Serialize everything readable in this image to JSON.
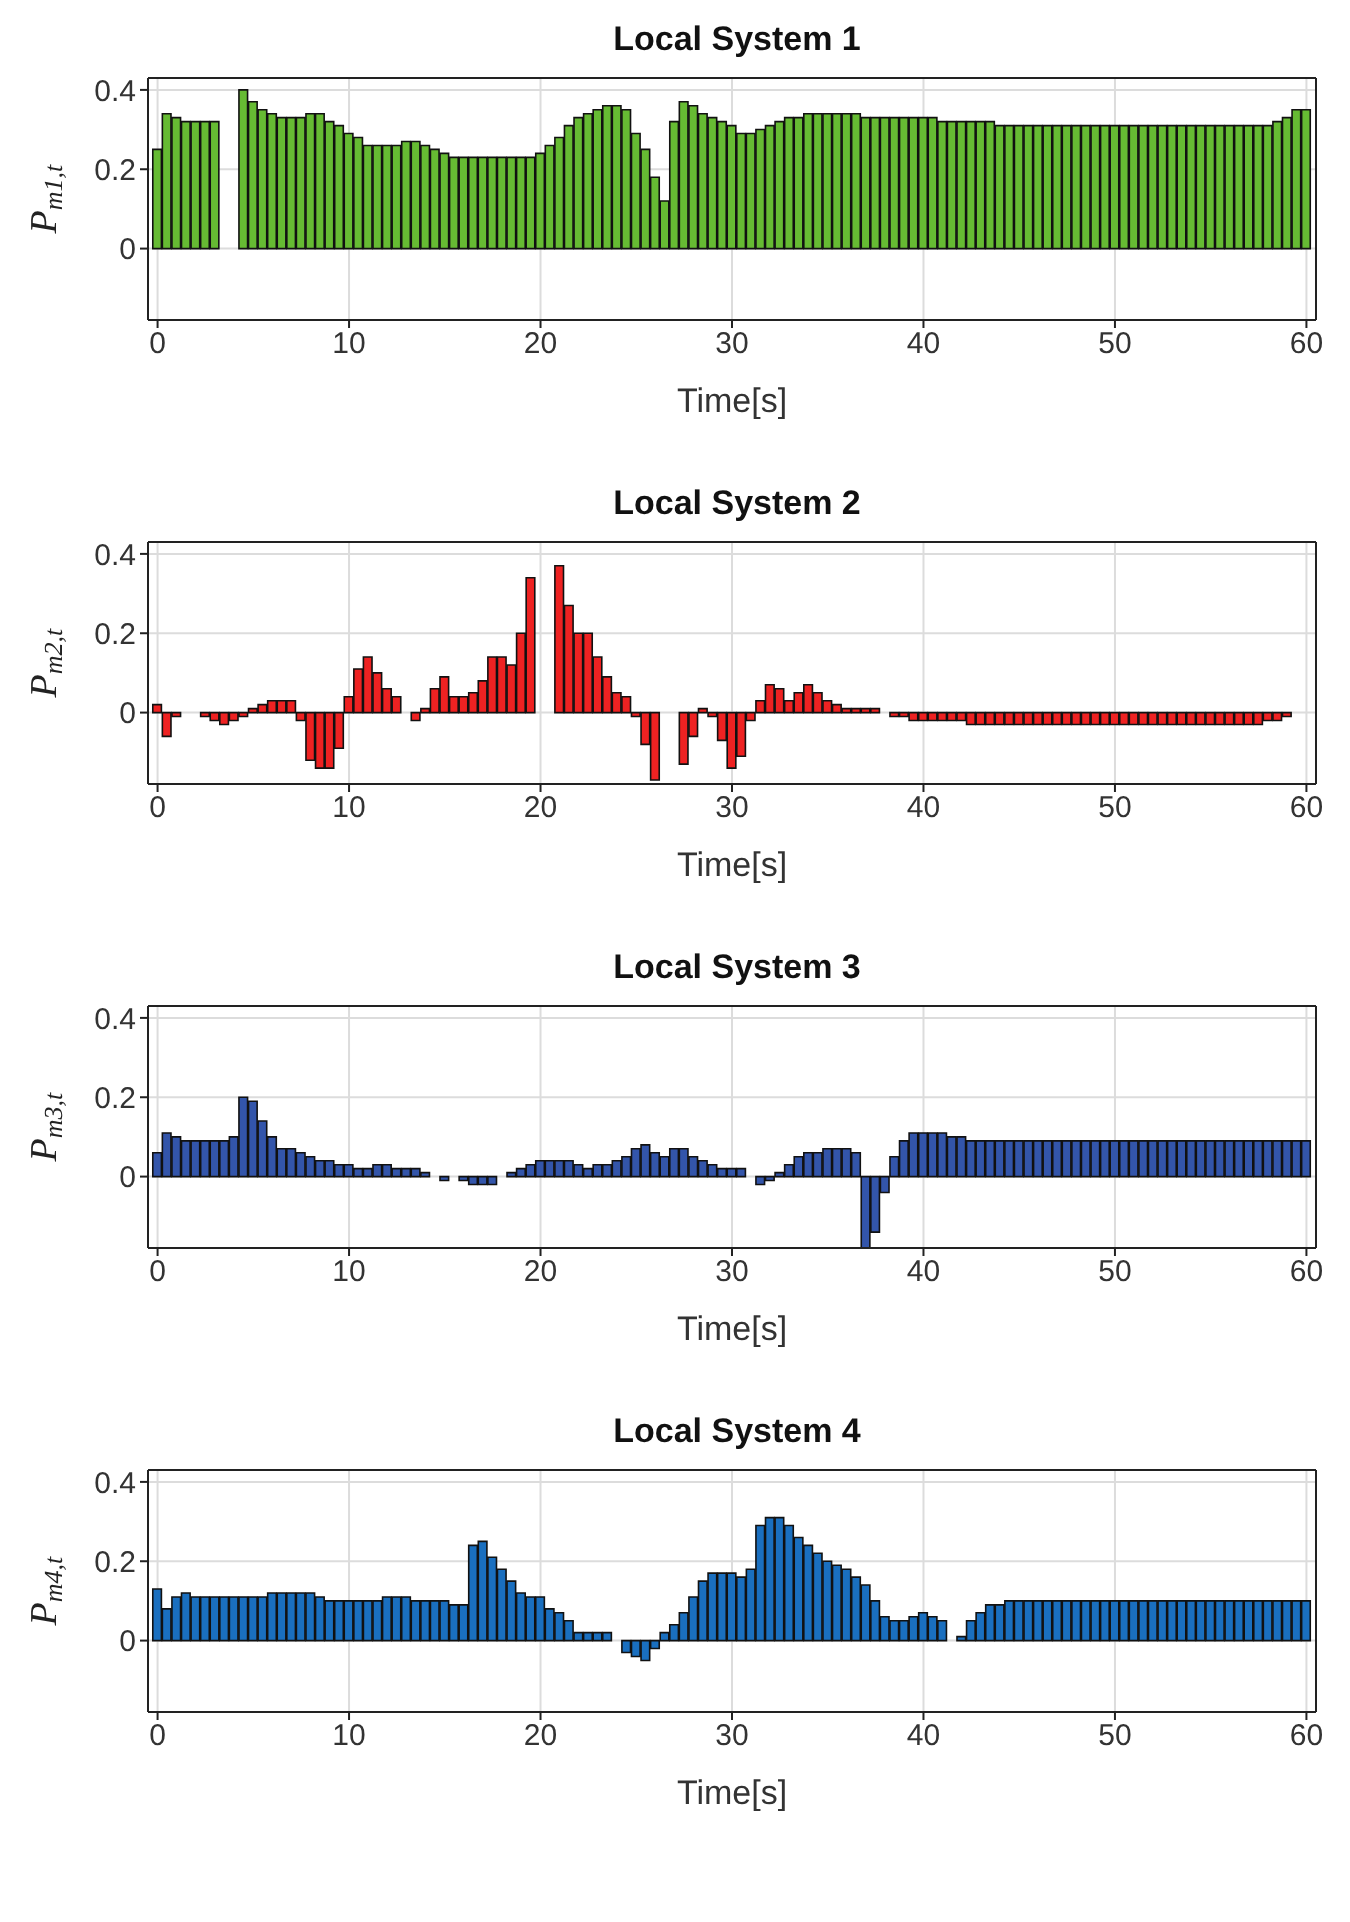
{
  "chart_data": [
    {
      "type": "bar",
      "title": "Local System 1",
      "xlabel": "Time[s]",
      "ylabel": "P$_{m1,t}$",
      "color": "#66bb33",
      "grid": true,
      "xlim": [
        -0.5,
        60.5
      ],
      "xticks": [
        0,
        10,
        20,
        30,
        40,
        50,
        60
      ],
      "ylim": [
        -0.18,
        0.43
      ],
      "yticks": [
        0,
        0.2,
        0.4
      ],
      "x": [
        0,
        0.5,
        1,
        1.5,
        2,
        2.5,
        3,
        3.5,
        4,
        4.5,
        5,
        5.5,
        6,
        6.5,
        7,
        7.5,
        8,
        8.5,
        9,
        9.5,
        10,
        10.5,
        11,
        11.5,
        12,
        12.5,
        13,
        13.5,
        14,
        14.5,
        15,
        15.5,
        16,
        16.5,
        17,
        17.5,
        18,
        18.5,
        19,
        19.5,
        20,
        20.5,
        21,
        21.5,
        22,
        22.5,
        23,
        23.5,
        24,
        24.5,
        25,
        25.5,
        26,
        26.5,
        27,
        27.5,
        28,
        28.5,
        29,
        29.5,
        30,
        30.5,
        31,
        31.5,
        32,
        32.5,
        33,
        33.5,
        34,
        34.5,
        35,
        35.5,
        36,
        36.5,
        37,
        37.5,
        38,
        38.5,
        39,
        39.5,
        40,
        40.5,
        41,
        41.5,
        42,
        42.5,
        43,
        43.5,
        44,
        44.5,
        45,
        45.5,
        46,
        46.5,
        47,
        47.5,
        48,
        48.5,
        49,
        49.5,
        50,
        50.5,
        51,
        51.5,
        52,
        52.5,
        53,
        53.5,
        54,
        54.5,
        55,
        55.5,
        56,
        56.5,
        57,
        57.5,
        58,
        58.5,
        59,
        59.5,
        60
      ],
      "values": [
        0.25,
        0.34,
        0.33,
        0.32,
        0.32,
        0.32,
        0.32,
        null,
        null,
        0.4,
        0.37,
        0.35,
        0.34,
        0.33,
        0.33,
        0.33,
        0.34,
        0.34,
        0.32,
        0.31,
        0.29,
        0.28,
        0.26,
        0.26,
        0.26,
        0.26,
        0.27,
        0.27,
        0.26,
        0.25,
        0.24,
        0.23,
        0.23,
        0.23,
        0.23,
        0.23,
        0.23,
        0.23,
        0.23,
        0.23,
        0.24,
        0.26,
        0.28,
        0.31,
        0.33,
        0.34,
        0.35,
        0.36,
        0.36,
        0.35,
        0.29,
        0.25,
        0.18,
        0.12,
        0.32,
        0.37,
        0.36,
        0.34,
        0.33,
        0.32,
        0.31,
        0.29,
        0.29,
        0.3,
        0.31,
        0.32,
        0.33,
        0.33,
        0.34,
        0.34,
        0.34,
        0.34,
        0.34,
        0.34,
        0.33,
        0.33,
        0.33,
        0.33,
        0.33,
        0.33,
        0.33,
        0.33,
        0.32,
        0.32,
        0.32,
        0.32,
        0.32,
        0.32,
        0.31,
        0.31,
        0.31,
        0.31,
        0.31,
        0.31,
        0.31,
        0.31,
        0.31,
        0.31,
        0.31,
        0.31,
        0.31,
        0.31,
        0.31,
        0.31,
        0.31,
        0.31,
        0.31,
        0.31,
        0.31,
        0.31,
        0.31,
        0.31,
        0.31,
        0.31,
        0.31,
        0.31,
        0.31,
        0.32,
        0.33,
        0.35,
        0.35
      ]
    },
    {
      "type": "bar",
      "title": "Local System 2",
      "xlabel": "Time[s]",
      "ylabel": "P$_{m2,t}$",
      "color": "#ee2222",
      "grid": true,
      "xlim": [
        -0.5,
        60.5
      ],
      "xticks": [
        0,
        10,
        20,
        30,
        40,
        50,
        60
      ],
      "ylim": [
        -0.18,
        0.43
      ],
      "yticks": [
        0,
        0.2,
        0.4
      ],
      "x": [
        0,
        0.5,
        1,
        1.5,
        2,
        2.5,
        3,
        3.5,
        4,
        4.5,
        5,
        5.5,
        6,
        6.5,
        7,
        7.5,
        8,
        8.5,
        9,
        9.5,
        10,
        10.5,
        11,
        11.5,
        12,
        12.5,
        13,
        13.5,
        14,
        14.5,
        15,
        15.5,
        16,
        16.5,
        17,
        17.5,
        18,
        18.5,
        19,
        19.5,
        20,
        20.5,
        21,
        21.5,
        22,
        22.5,
        23,
        23.5,
        24,
        24.5,
        25,
        25.5,
        26,
        26.5,
        27,
        27.5,
        28,
        28.5,
        29,
        29.5,
        30,
        30.5,
        31,
        31.5,
        32,
        32.5,
        33,
        33.5,
        34,
        34.5,
        35,
        35.5,
        36,
        36.5,
        37,
        37.5,
        38,
        38.5,
        39,
        39.5,
        40,
        40.5,
        41,
        41.5,
        42,
        42.5,
        43,
        43.5,
        44,
        44.5,
        45,
        45.5,
        46,
        46.5,
        47,
        47.5,
        48,
        48.5,
        49,
        49.5,
        50,
        50.5,
        51,
        51.5,
        52,
        52.5,
        53,
        53.5,
        54,
        54.5,
        55,
        55.5,
        56,
        56.5,
        57,
        57.5,
        58,
        58.5,
        59,
        59.5,
        60
      ],
      "values": [
        0.02,
        -0.06,
        -0.01,
        0,
        0,
        -0.01,
        -0.02,
        -0.03,
        -0.02,
        -0.01,
        0.01,
        0.02,
        0.03,
        0.03,
        0.03,
        -0.02,
        -0.12,
        -0.14,
        -0.14,
        -0.09,
        0.04,
        0.11,
        0.14,
        0.1,
        0.06,
        0.04,
        0,
        -0.02,
        0.01,
        0.06,
        0.09,
        0.04,
        0.04,
        0.05,
        0.08,
        0.14,
        0.14,
        0.12,
        0.2,
        0.34,
        null,
        null,
        0.37,
        0.27,
        0.2,
        0.2,
        0.14,
        0.09,
        0.05,
        0.04,
        -0.01,
        -0.08,
        -0.17,
        null,
        null,
        -0.13,
        -0.06,
        0.01,
        -0.01,
        -0.07,
        -0.14,
        -0.11,
        -0.02,
        0.03,
        0.07,
        0.06,
        0.03,
        0.05,
        0.07,
        0.05,
        0.03,
        0.02,
        0.01,
        0.01,
        0.01,
        0.01,
        0,
        -0.01,
        -0.01,
        -0.02,
        -0.02,
        -0.02,
        -0.02,
        -0.02,
        -0.02,
        -0.03,
        -0.03,
        -0.03,
        -0.03,
        -0.03,
        -0.03,
        -0.03,
        -0.03,
        -0.03,
        -0.03,
        -0.03,
        -0.03,
        -0.03,
        -0.03,
        -0.03,
        -0.03,
        -0.03,
        -0.03,
        -0.03,
        -0.03,
        -0.03,
        -0.03,
        -0.03,
        -0.03,
        -0.03,
        -0.03,
        -0.03,
        -0.03,
        -0.03,
        -0.03,
        -0.03,
        -0.02,
        -0.02,
        -0.01,
        0,
        0
      ]
    },
    {
      "type": "bar",
      "title": "Local System 3",
      "xlabel": "Time[s]",
      "ylabel": "P$_{m3,t}$",
      "color": "#3355aa",
      "grid": true,
      "xlim": [
        -0.5,
        60.5
      ],
      "xticks": [
        0,
        10,
        20,
        30,
        40,
        50,
        60
      ],
      "ylim": [
        -0.18,
        0.43
      ],
      "yticks": [
        0,
        0.2,
        0.4
      ],
      "x": [
        0,
        0.5,
        1,
        1.5,
        2,
        2.5,
        3,
        3.5,
        4,
        4.5,
        5,
        5.5,
        6,
        6.5,
        7,
        7.5,
        8,
        8.5,
        9,
        9.5,
        10,
        10.5,
        11,
        11.5,
        12,
        12.5,
        13,
        13.5,
        14,
        14.5,
        15,
        15.5,
        16,
        16.5,
        17,
        17.5,
        18,
        18.5,
        19,
        19.5,
        20,
        20.5,
        21,
        21.5,
        22,
        22.5,
        23,
        23.5,
        24,
        24.5,
        25,
        25.5,
        26,
        26.5,
        27,
        27.5,
        28,
        28.5,
        29,
        29.5,
        30,
        30.5,
        31,
        31.5,
        32,
        32.5,
        33,
        33.5,
        34,
        34.5,
        35,
        35.5,
        36,
        36.5,
        37,
        37.5,
        38,
        38.5,
        39,
        39.5,
        40,
        40.5,
        41,
        41.5,
        42,
        42.5,
        43,
        43.5,
        44,
        44.5,
        45,
        45.5,
        46,
        46.5,
        47,
        47.5,
        48,
        48.5,
        49,
        49.5,
        50,
        50.5,
        51,
        51.5,
        52,
        52.5,
        53,
        53.5,
        54,
        54.5,
        55,
        55.5,
        56,
        56.5,
        57,
        57.5,
        58,
        58.5,
        59,
        59.5,
        60
      ],
      "values": [
        0.06,
        0.11,
        0.1,
        0.09,
        0.09,
        0.09,
        0.09,
        0.09,
        0.1,
        0.2,
        0.19,
        0.14,
        0.1,
        0.07,
        0.07,
        0.06,
        0.05,
        0.04,
        0.04,
        0.03,
        0.03,
        0.02,
        0.02,
        0.03,
        0.03,
        0.02,
        0.02,
        0.02,
        0.01,
        0,
        -0.01,
        0,
        -0.01,
        -0.02,
        -0.02,
        -0.02,
        0,
        0.01,
        0.02,
        0.03,
        0.04,
        0.04,
        0.04,
        0.04,
        0.03,
        0.02,
        0.03,
        0.03,
        0.04,
        0.05,
        0.07,
        0.08,
        0.06,
        0.05,
        0.07,
        0.07,
        0.05,
        0.04,
        0.03,
        0.02,
        0.02,
        0.02,
        0,
        -0.02,
        -0.01,
        0.01,
        0.03,
        0.05,
        0.06,
        0.06,
        0.07,
        0.07,
        0.07,
        0.06,
        -0.18,
        -0.14,
        -0.04,
        0.05,
        0.09,
        0.11,
        0.11,
        0.11,
        0.11,
        0.1,
        0.1,
        0.09,
        0.09,
        0.09,
        0.09,
        0.09,
        0.09,
        0.09,
        0.09,
        0.09,
        0.09,
        0.09,
        0.09,
        0.09,
        0.09,
        0.09,
        0.09,
        0.09,
        0.09,
        0.09,
        0.09,
        0.09,
        0.09,
        0.09,
        0.09,
        0.09,
        0.09,
        0.09,
        0.09,
        0.09,
        0.09,
        0.09,
        0.09,
        0.09,
        0.09,
        0.09,
        0.09
      ]
    },
    {
      "type": "bar",
      "title": "Local System 4",
      "xlabel": "Time[s]",
      "ylabel": "P$_{m4,t}$",
      "color": "#1a6fbf",
      "grid": true,
      "xlim": [
        -0.5,
        60.5
      ],
      "xticks": [
        0,
        10,
        20,
        30,
        40,
        50,
        60
      ],
      "ylim": [
        -0.18,
        0.43
      ],
      "yticks": [
        0,
        0.2,
        0.4
      ],
      "x": [
        0,
        0.5,
        1,
        1.5,
        2,
        2.5,
        3,
        3.5,
        4,
        4.5,
        5,
        5.5,
        6,
        6.5,
        7,
        7.5,
        8,
        8.5,
        9,
        9.5,
        10,
        10.5,
        11,
        11.5,
        12,
        12.5,
        13,
        13.5,
        14,
        14.5,
        15,
        15.5,
        16,
        16.5,
        17,
        17.5,
        18,
        18.5,
        19,
        19.5,
        20,
        20.5,
        21,
        21.5,
        22,
        22.5,
        23,
        23.5,
        24,
        24.5,
        25,
        25.5,
        26,
        26.5,
        27,
        27.5,
        28,
        28.5,
        29,
        29.5,
        30,
        30.5,
        31,
        31.5,
        32,
        32.5,
        33,
        33.5,
        34,
        34.5,
        35,
        35.5,
        36,
        36.5,
        37,
        37.5,
        38,
        38.5,
        39,
        39.5,
        40,
        40.5,
        41,
        41.5,
        42,
        42.5,
        43,
        43.5,
        44,
        44.5,
        45,
        45.5,
        46,
        46.5,
        47,
        47.5,
        48,
        48.5,
        49,
        49.5,
        50,
        50.5,
        51,
        51.5,
        52,
        52.5,
        53,
        53.5,
        54,
        54.5,
        55,
        55.5,
        56,
        56.5,
        57,
        57.5,
        58,
        58.5,
        59,
        59.5,
        60
      ],
      "values": [
        0.13,
        0.08,
        0.11,
        0.12,
        0.11,
        0.11,
        0.11,
        0.11,
        0.11,
        0.11,
        0.11,
        0.11,
        0.12,
        0.12,
        0.12,
        0.12,
        0.12,
        0.11,
        0.1,
        0.1,
        0.1,
        0.1,
        0.1,
        0.1,
        0.11,
        0.11,
        0.11,
        0.1,
        0.1,
        0.1,
        0.1,
        0.09,
        0.09,
        0.24,
        0.25,
        0.21,
        0.18,
        0.15,
        0.12,
        0.11,
        0.11,
        0.08,
        0.07,
        0.05,
        0.02,
        0.02,
        0.02,
        0.02,
        0,
        -0.03,
        -0.04,
        -0.05,
        -0.02,
        0.02,
        0.04,
        0.07,
        0.11,
        0.15,
        0.17,
        0.17,
        0.17,
        0.16,
        0.18,
        0.29,
        0.31,
        0.31,
        0.29,
        0.26,
        0.24,
        0.22,
        0.2,
        0.19,
        0.18,
        0.16,
        0.14,
        0.1,
        0.06,
        0.05,
        0.05,
        0.06,
        0.07,
        0.06,
        0.05,
        0,
        0.01,
        0.05,
        0.07,
        0.09,
        0.09,
        0.1,
        0.1,
        0.1,
        0.1,
        0.1,
        0.1,
        0.1,
        0.1,
        0.1,
        0.1,
        0.1,
        0.1,
        0.1,
        0.1,
        0.1,
        0.1,
        0.1,
        0.1,
        0.1,
        0.1,
        0.1,
        0.1,
        0.1,
        0.1,
        0.1,
        0.1,
        0.1,
        0.1,
        0.1,
        0.1,
        0.1,
        0.1
      ]
    }
  ]
}
